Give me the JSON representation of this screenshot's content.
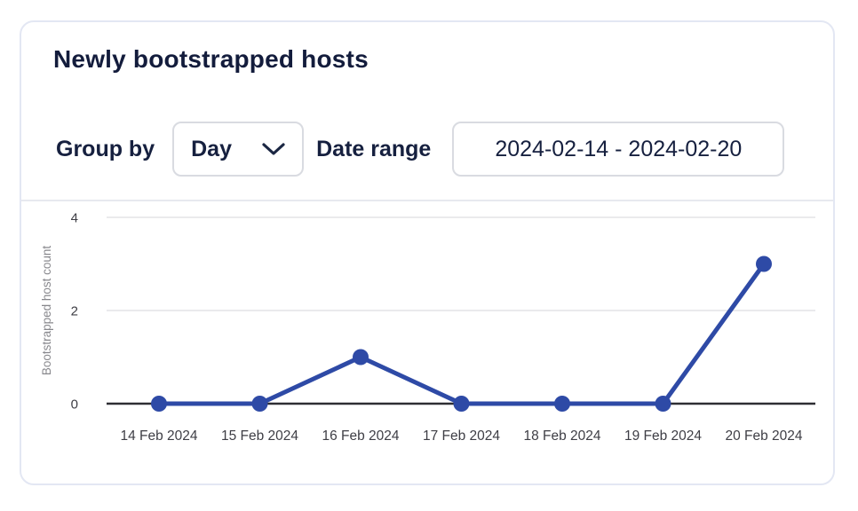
{
  "card": {
    "title": "Newly bootstrapped hosts"
  },
  "controls": {
    "group_by": {
      "label": "Group by",
      "value": "Day"
    },
    "date_range": {
      "label": "Date range",
      "value": "2024-02-14 - 2024-02-20"
    }
  },
  "icons": {
    "group_by_dropdown": "chevron-down-icon"
  },
  "colors": {
    "accent": "#2e4aa6",
    "text_navy": "#16203f",
    "card_border": "#e3e7f3",
    "control_border": "#d9dbe1",
    "divider": "#e7e9ef"
  },
  "chart_data": {
    "type": "line",
    "title": "",
    "categories": [
      "14 Feb 2024",
      "15 Feb 2024",
      "16 Feb 2024",
      "17 Feb 2024",
      "18 Feb 2024",
      "19 Feb 2024",
      "20 Feb 2024"
    ],
    "values": [
      0,
      0,
      1,
      0,
      0,
      0,
      3
    ],
    "xlabel": "",
    "ylabel": "Bootstrapped host count",
    "ylim": [
      0,
      4
    ],
    "yticks": [
      0,
      2,
      4
    ],
    "grid": true,
    "legend": false,
    "line_color": "#2e4aa6",
    "point_color": "#2e4aa6",
    "axis_color": "#2e2e33",
    "grid_color": "#eaeaec",
    "tick_label_color": "#3e3e45",
    "axis_title_color": "#87878c"
  }
}
